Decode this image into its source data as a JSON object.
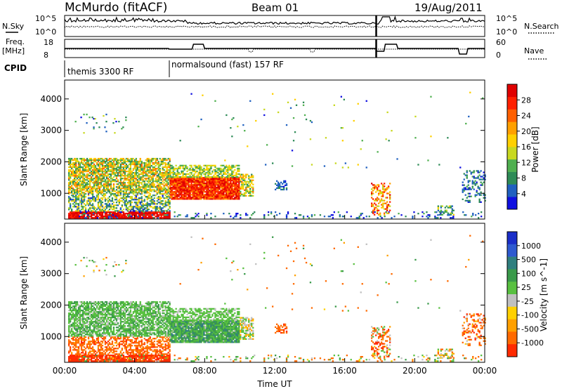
{
  "header": {
    "station": "McMurdo (fitACF)",
    "beam": "Beam 01",
    "date": "19/Aug/2011"
  },
  "params": {
    "nsky_label": "N.Sky",
    "nsearch_label": "N.Search",
    "freq_label_1": "Freq.",
    "freq_label_2": "[MHz]",
    "nave_label": "Nave",
    "cpid_label": "CPID",
    "nsky_ticks": [
      "10^5",
      "10^0"
    ],
    "nsearch_ticks": [
      "10^5",
      "10^0"
    ],
    "freq_ticks": [
      "18",
      "8"
    ],
    "nave_ticks": [
      "60",
      "0"
    ],
    "cpid_segments": [
      {
        "label": "themis 3300 RF",
        "start_hour": 0
      },
      {
        "label": "normalsound (fast) 157 RF",
        "start_hour": 6
      }
    ]
  },
  "chart_data": [
    {
      "type": "heatmap",
      "name": "power",
      "xlabel": "",
      "ylabel": "Slant Range [km]",
      "xlim": [
        0,
        24
      ],
      "ylim": [
        180,
        4600
      ],
      "yticks": [
        "1000",
        "2000",
        "3000",
        "4000"
      ],
      "colorbar_label": "Power [dB]",
      "colorbar_ticks": [
        "4",
        "8",
        "12",
        "16",
        "20",
        "24",
        "28"
      ],
      "colorbar_colors": [
        "#1010e0",
        "#2060c0",
        "#2e8b57",
        "#50b050",
        "#c8d820",
        "#ffd000",
        "#ffa000",
        "#ff6000",
        "#ff2000",
        "#e00000"
      ]
    },
    {
      "type": "heatmap",
      "name": "velocity",
      "xlabel": "Time UT",
      "ylabel": "Slant Range [km]",
      "xlim": [
        0,
        24
      ],
      "ylim": [
        180,
        4600
      ],
      "xticks": [
        "00:00",
        "04:00",
        "08:00",
        "12:00",
        "16:00",
        "20:00",
        "00:00"
      ],
      "yticks": [
        "1000",
        "2000",
        "3000",
        "4000"
      ],
      "colorbar_label": "Velocity [m s^-1]",
      "colorbar_ticks": [
        "1000",
        "500",
        "100",
        "25",
        "-25",
        "-100",
        "-500",
        "-1000"
      ],
      "colorbar_colors": [
        "#1a2ec8",
        "#2e5ad0",
        "#2f7f7f",
        "#3a9a4a",
        "#58c040",
        "#c0c0c0",
        "#ffd000",
        "#ffa000",
        "#ff6a00",
        "#ff2a00"
      ]
    }
  ]
}
